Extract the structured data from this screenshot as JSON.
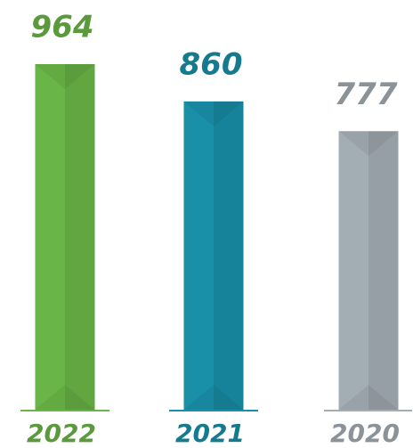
{
  "chart_data": {
    "type": "bar",
    "categories": [
      "2022",
      "2021",
      "2020"
    ],
    "values": [
      964,
      860,
      777
    ],
    "colors": [
      "#6ab547",
      "#1a8fa8",
      "#a3adb4"
    ]
  }
}
